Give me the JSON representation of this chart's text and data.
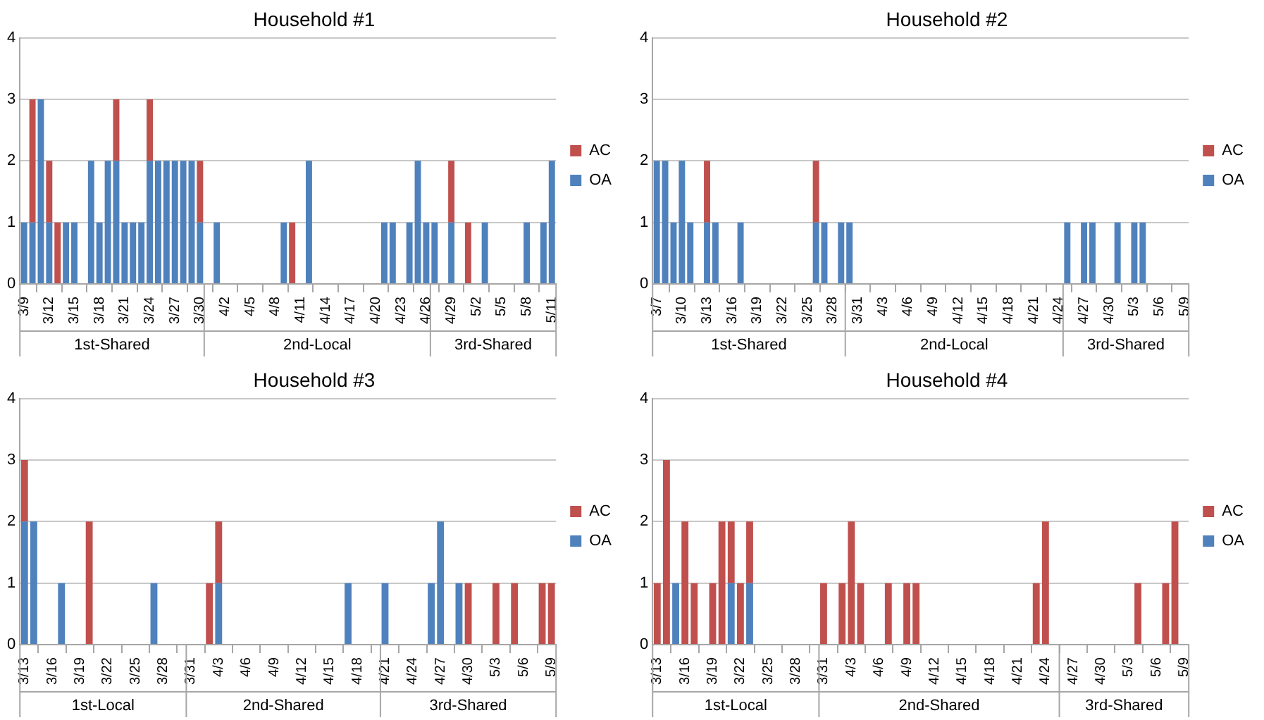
{
  "chart_data": [
    {
      "type": "bar",
      "title": "Household #1",
      "stacked": true,
      "grid": "y",
      "legend": "right",
      "x": [
        "--03-09",
        "--03-10",
        "--03-11",
        "--03-12",
        "--03-13",
        "--03-14",
        "--03-15",
        "--03-17",
        "--03-18",
        "--03-19",
        "--03-20",
        "--03-21",
        "--03-22",
        "--03-23",
        "--03-24",
        "--03-25",
        "--03-26",
        "--03-27",
        "--03-28",
        "--03-29",
        "--03-30",
        "--04-01",
        "--04-09",
        "--04-10",
        "--04-12",
        "--04-21",
        "--04-22",
        "--04-24",
        "--04-25",
        "--04-26",
        "--04-27",
        "--04-29",
        "--05-01",
        "--05-03",
        "--05-08",
        "--05-10",
        "--05-11"
      ],
      "series": [
        {
          "name": "OA",
          "color": "#4f81bd",
          "values": [
            1,
            1,
            3,
            1,
            0,
            1,
            1,
            2,
            1,
            2,
            2,
            1,
            1,
            1,
            2,
            2,
            2,
            2,
            2,
            2,
            1,
            1,
            1,
            0,
            2,
            1,
            1,
            1,
            2,
            1,
            1,
            1,
            0,
            1,
            1,
            1,
            2
          ]
        },
        {
          "name": "AC",
          "color": "#c0504d",
          "values": [
            0,
            2,
            0,
            1,
            1,
            0,
            0,
            0,
            0,
            0,
            1,
            0,
            0,
            0,
            1,
            0,
            0,
            0,
            0,
            0,
            1,
            0,
            0,
            1,
            0,
            0,
            0,
            0,
            0,
            0,
            0,
            1,
            1,
            0,
            0,
            0,
            0
          ]
        }
      ],
      "xlim": [
        "--03-08T12:00",
        "--05-11T12:00"
      ],
      "xticks": [
        {
          "value": "--03-09",
          "label": "3/9"
        },
        {
          "value": "--03-12",
          "label": "3/12"
        },
        {
          "value": "--03-15",
          "label": "3/15"
        },
        {
          "value": "--03-18",
          "label": "3/18"
        },
        {
          "value": "--03-21",
          "label": "3/21"
        },
        {
          "value": "--03-24",
          "label": "3/24"
        },
        {
          "value": "--03-27",
          "label": "3/27"
        },
        {
          "value": "--03-30",
          "label": "3/30"
        },
        {
          "value": "--04-02",
          "label": "4/2"
        },
        {
          "value": "--04-05",
          "label": "4/5"
        },
        {
          "value": "--04-08",
          "label": "4/8"
        },
        {
          "value": "--04-11",
          "label": "4/11"
        },
        {
          "value": "--04-14",
          "label": "4/14"
        },
        {
          "value": "--04-17",
          "label": "4/17"
        },
        {
          "value": "--04-20",
          "label": "4/20"
        },
        {
          "value": "--04-23",
          "label": "4/23"
        },
        {
          "value": "--04-26",
          "label": "4/26"
        },
        {
          "value": "--04-29",
          "label": "4/29"
        },
        {
          "value": "--05-02",
          "label": "5/2"
        },
        {
          "value": "--05-05",
          "label": "5/5"
        },
        {
          "value": "--05-08",
          "label": "5/8"
        },
        {
          "value": "--05-11",
          "label": "5/11"
        }
      ],
      "ylim": [
        0,
        4
      ],
      "yticks": [
        0,
        1,
        2,
        3,
        4
      ],
      "annotations": [
        "1st-Shared",
        "2nd-Local",
        "3rd-Shared"
      ]
    },
    {
      "type": "bar",
      "title": "Household #2",
      "stacked": true,
      "grid": "y",
      "legend": "right",
      "x": [
        "--03-07",
        "--03-08",
        "--03-09",
        "--03-10",
        "--03-11",
        "--03-13",
        "--03-14",
        "--03-17",
        "--03-26",
        "--03-27",
        "--03-29",
        "--03-30",
        "--04-25",
        "--04-27",
        "--04-28",
        "--05-01",
        "--05-03",
        "--05-04"
      ],
      "series": [
        {
          "name": "OA",
          "color": "#4f81bd",
          "values": [
            2,
            2,
            1,
            2,
            1,
            1,
            1,
            1,
            1,
            1,
            1,
            1,
            1,
            1,
            1,
            1,
            1,
            1
          ]
        },
        {
          "name": "AC",
          "color": "#c0504d",
          "values": [
            0,
            0,
            0,
            0,
            0,
            1,
            0,
            0,
            1,
            0,
            0,
            0,
            0,
            0,
            0,
            0,
            0,
            0
          ]
        }
      ],
      "xlim": [
        "--03-06T12:00",
        "--05-09T12:00"
      ],
      "xticks": [
        {
          "value": "--03-07",
          "label": "3/7"
        },
        {
          "value": "--03-10",
          "label": "3/10"
        },
        {
          "value": "--03-13",
          "label": "3/13"
        },
        {
          "value": "--03-16",
          "label": "3/16"
        },
        {
          "value": "--03-19",
          "label": "3/19"
        },
        {
          "value": "--03-22",
          "label": "3/22"
        },
        {
          "value": "--03-25",
          "label": "3/25"
        },
        {
          "value": "--03-28",
          "label": "3/28"
        },
        {
          "value": "--03-31",
          "label": "3/31"
        },
        {
          "value": "--04-03",
          "label": "4/3"
        },
        {
          "value": "--04-06",
          "label": "4/6"
        },
        {
          "value": "--04-09",
          "label": "4/9"
        },
        {
          "value": "--04-12",
          "label": "4/12"
        },
        {
          "value": "--04-15",
          "label": "4/15"
        },
        {
          "value": "--04-18",
          "label": "4/18"
        },
        {
          "value": "--04-21",
          "label": "4/21"
        },
        {
          "value": "--04-24",
          "label": "4/24"
        },
        {
          "value": "--04-27",
          "label": "4/27"
        },
        {
          "value": "--04-30",
          "label": "4/30"
        },
        {
          "value": "--05-03",
          "label": "5/3"
        },
        {
          "value": "--05-06",
          "label": "5/6"
        },
        {
          "value": "--05-09",
          "label": "5/9"
        }
      ],
      "ylim": [
        0,
        4
      ],
      "yticks": [
        0,
        1,
        2,
        3,
        4
      ],
      "annotations": [
        "1st-Shared",
        "2nd-Local",
        "3rd-Shared"
      ]
    },
    {
      "type": "bar",
      "title": "Household #3",
      "stacked": true,
      "grid": "y",
      "legend": "right",
      "x": [
        "--03-13",
        "--03-14",
        "--03-17",
        "--03-20",
        "--03-27",
        "--04-02",
        "--04-03",
        "--04-17",
        "--04-21",
        "--04-26",
        "--04-27",
        "--04-29",
        "--04-30",
        "--05-03",
        "--05-05",
        "--05-08",
        "--05-09"
      ],
      "series": [
        {
          "name": "OA",
          "color": "#4f81bd",
          "values": [
            2,
            2,
            1,
            0,
            1,
            0,
            1,
            1,
            1,
            1,
            2,
            1,
            0,
            0,
            0,
            0,
            0
          ]
        },
        {
          "name": "AC",
          "color": "#c0504d",
          "values": [
            1,
            0,
            0,
            2,
            0,
            1,
            1,
            0,
            0,
            0,
            0,
            0,
            1,
            1,
            1,
            1,
            1
          ]
        }
      ],
      "xlim": [
        "--03-12T12:00",
        "--05-09T12:00"
      ],
      "xticks": [
        {
          "value": "--03-13",
          "label": "3/13"
        },
        {
          "value": "--03-16",
          "label": "3/16"
        },
        {
          "value": "--03-19",
          "label": "3/19"
        },
        {
          "value": "--03-22",
          "label": "3/22"
        },
        {
          "value": "--03-25",
          "label": "3/25"
        },
        {
          "value": "--03-28",
          "label": "3/28"
        },
        {
          "value": "--03-31",
          "label": "3/31"
        },
        {
          "value": "--04-03",
          "label": "4/3"
        },
        {
          "value": "--04-06",
          "label": "4/6"
        },
        {
          "value": "--04-09",
          "label": "4/9"
        },
        {
          "value": "--04-12",
          "label": "4/12"
        },
        {
          "value": "--04-15",
          "label": "4/15"
        },
        {
          "value": "--04-18",
          "label": "4/18"
        },
        {
          "value": "--04-21",
          "label": "4/21"
        },
        {
          "value": "--04-24",
          "label": "4/24"
        },
        {
          "value": "--04-27",
          "label": "4/27"
        },
        {
          "value": "--04-30",
          "label": "4/30"
        },
        {
          "value": "--05-03",
          "label": "5/3"
        },
        {
          "value": "--05-06",
          "label": "5/6"
        },
        {
          "value": "--05-09",
          "label": "5/9"
        }
      ],
      "ylim": [
        0,
        4
      ],
      "yticks": [
        0,
        1,
        2,
        3,
        4
      ],
      "annotations": [
        "1st-Local",
        "2nd-Shared",
        "3rd-Shared"
      ]
    },
    {
      "type": "bar",
      "title": "Household #4",
      "stacked": true,
      "grid": "y",
      "legend": "right",
      "x": [
        "--03-13",
        "--03-14",
        "--03-15",
        "--03-16",
        "--03-17",
        "--03-19",
        "--03-20",
        "--03-21",
        "--03-22",
        "--03-23",
        "--03-31",
        "--04-02",
        "--04-03",
        "--04-04",
        "--04-07",
        "--04-09",
        "--04-10",
        "--04-23",
        "--04-24",
        "--05-04",
        "--05-07",
        "--05-08"
      ],
      "series": [
        {
          "name": "OA",
          "color": "#4f81bd",
          "values": [
            0,
            0,
            1,
            0,
            0,
            0,
            0,
            1,
            0,
            1,
            0,
            0,
            0,
            0,
            0,
            0,
            0,
            0,
            0,
            0,
            0,
            0
          ]
        },
        {
          "name": "AC",
          "color": "#c0504d",
          "values": [
            1,
            3,
            0,
            2,
            1,
            1,
            2,
            1,
            1,
            1,
            1,
            1,
            2,
            1,
            1,
            1,
            1,
            1,
            2,
            1,
            1,
            2
          ]
        }
      ],
      "xlim": [
        "--03-12T12:00",
        "--05-09T12:00"
      ],
      "xticks": [
        {
          "value": "--03-13",
          "label": "3/13"
        },
        {
          "value": "--03-16",
          "label": "3/16"
        },
        {
          "value": "--03-19",
          "label": "3/19"
        },
        {
          "value": "--03-22",
          "label": "3/22"
        },
        {
          "value": "--03-25",
          "label": "3/25"
        },
        {
          "value": "--03-28",
          "label": "3/28"
        },
        {
          "value": "--03-31",
          "label": "3/31"
        },
        {
          "value": "--04-03",
          "label": "4/3"
        },
        {
          "value": "--04-06",
          "label": "4/6"
        },
        {
          "value": "--04-09",
          "label": "4/9"
        },
        {
          "value": "--04-12",
          "label": "4/12"
        },
        {
          "value": "--04-15",
          "label": "4/15"
        },
        {
          "value": "--04-18",
          "label": "4/18"
        },
        {
          "value": "--04-21",
          "label": "4/21"
        },
        {
          "value": "--04-24",
          "label": "4/24"
        },
        {
          "value": "--04-27",
          "label": "4/27"
        },
        {
          "value": "--04-30",
          "label": "4/30"
        },
        {
          "value": "--05-03",
          "label": "5/3"
        },
        {
          "value": "--05-06",
          "label": "5/6"
        },
        {
          "value": "--05-09",
          "label": "5/9"
        }
      ],
      "ylim": [
        0,
        4
      ],
      "yticks": [
        0,
        1,
        2,
        3,
        4
      ],
      "annotations": [
        "1st-Local",
        "2nd-Shared",
        "3rd-Shared"
      ]
    }
  ]
}
